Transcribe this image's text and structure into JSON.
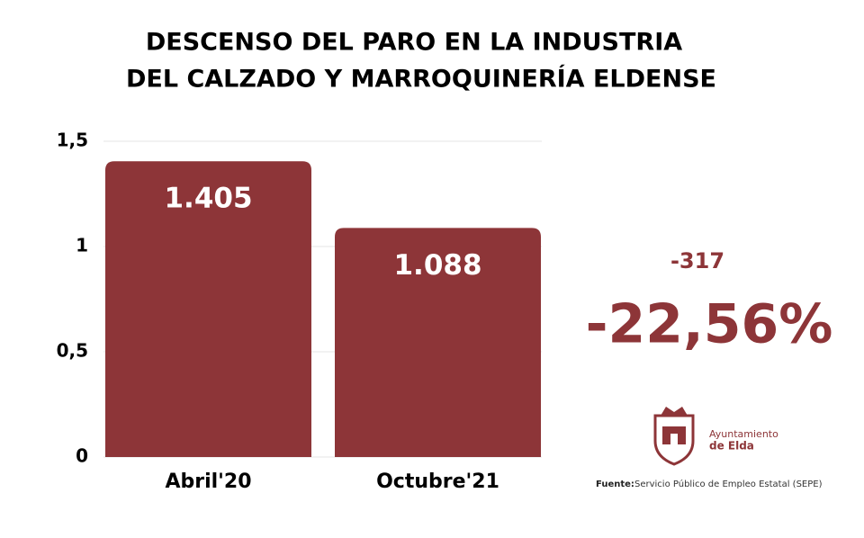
{
  "chart_data": {
    "type": "bar",
    "title": [
      "DESCENSO DEL PARO EN LA INDUSTRIA",
      "DEL CALZADO Y MARROQUINERÍA ELDENSE"
    ],
    "categories": [
      "Abril'20",
      "Octubre'21"
    ],
    "values": [
      1.405,
      1.088
    ],
    "value_labels": [
      "1.405",
      "1.088"
    ],
    "color": "#8d3538",
    "ylim": [
      0,
      1.5
    ],
    "yticks": [
      0,
      {
        "value": 0.5,
        "label": "0,5"
      },
      1,
      {
        "value": 1.5,
        "label": "1,5"
      }
    ],
    "grid": true,
    "annotations": {
      "difference": "-317",
      "percent": "-22,56%"
    },
    "logo": [
      "Ayuntamiento",
      "de Elda"
    ],
    "source_label": "Fuente:",
    "source": "Servicio Público de Empleo Estatal (SEPE)"
  }
}
